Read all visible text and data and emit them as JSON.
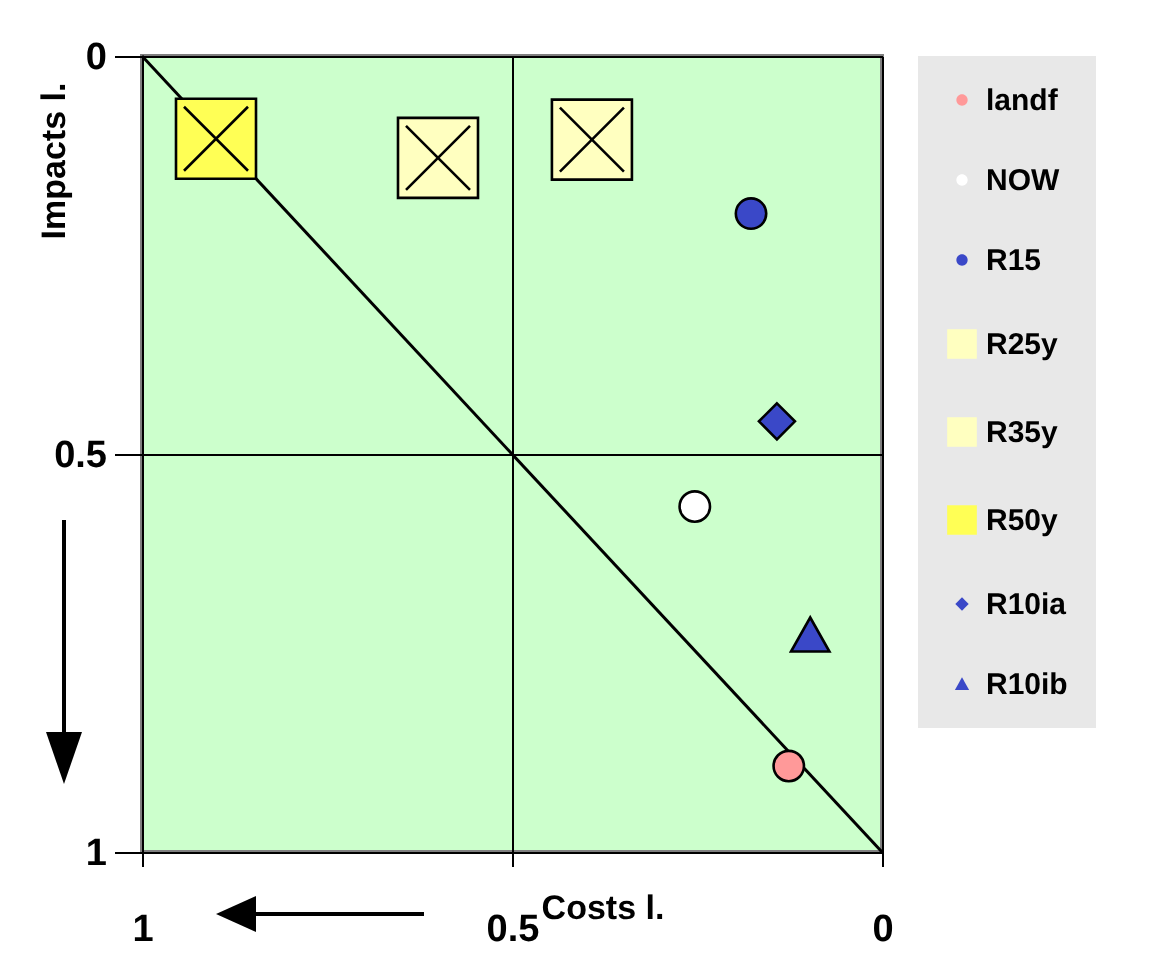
{
  "chart_data": {
    "type": "scatter",
    "xlabel": "Costs l.",
    "ylabel": "Impacts l.",
    "xlim": [
      1,
      0
    ],
    "ylim": [
      1,
      0
    ],
    "xticks": [
      1,
      0.5,
      0
    ],
    "yticks": [
      0,
      0.5,
      1
    ],
    "grid": true,
    "legend": "right",
    "series": [
      {
        "name": "landf",
        "color": "#ff9999",
        "marker": "circle",
        "x": [
          0.126
        ],
        "values": [
          0.892
        ]
      },
      {
        "name": "NOW",
        "color": "#ffffff",
        "marker": "circle",
        "x": [
          0.253
        ],
        "values": [
          0.566
        ]
      },
      {
        "name": "R15",
        "color": "#3a48c8",
        "marker": "circle",
        "x": [
          0.177
        ],
        "values": [
          0.198
        ]
      },
      {
        "name": "R25y",
        "color": "#ffffc0",
        "marker": "cross",
        "x": [
          0.392
        ],
        "values": [
          0.105
        ]
      },
      {
        "name": "R35y",
        "color": "#ffffc0",
        "marker": "cross",
        "x": [
          0.6
        ],
        "values": [
          0.128
        ]
      },
      {
        "name": "R50y",
        "color": "#ffff55",
        "marker": "cross",
        "x": [
          0.9
        ],
        "values": [
          0.104
        ]
      },
      {
        "name": "R10ia",
        "color": "#3a48c8",
        "marker": "diamond",
        "x": [
          0.142
        ],
        "values": [
          0.459
        ]
      },
      {
        "name": "R10ib",
        "color": "#3a48c8",
        "marker": "triangle",
        "x": [
          0.097
        ],
        "values": [
          0.728
        ]
      },
      {
        "type": "line",
        "color": "#000000",
        "x": [
          1,
          0
        ],
        "values": [
          0,
          1
        ]
      }
    ]
  }
}
